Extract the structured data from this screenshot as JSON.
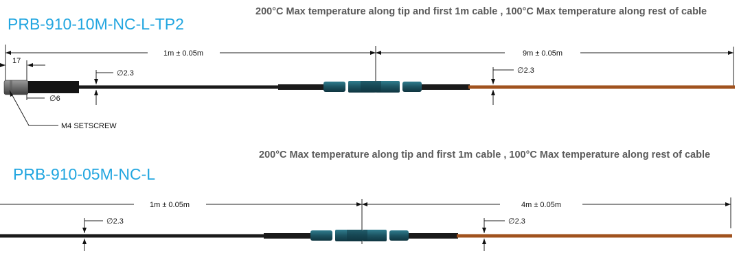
{
  "colors": {
    "title": "#22a6e0",
    "note": "#5a5a5a",
    "cable_black": "#141414",
    "cable_brown": "#a0521e",
    "connector": "#1f5f6e"
  },
  "drawings": [
    {
      "part_number": "PRB-910-10M-NC-L-TP2",
      "note": "200°C Max temperature along tip and first 1m cable , 100°C Max temperature along rest of cable",
      "dim_first": "1m ± 0.05m",
      "dim_rest": "9m ± 0.05m",
      "dim_tip_length": "17",
      "dia_cable_black": "∅2.3",
      "dia_cable_brown": "∅2.3",
      "dia_tip": "∅6",
      "setscrew_label": "M4 SETSCREW"
    },
    {
      "part_number": "PRB-910-05M-NC-L",
      "note": "200°C Max temperature along tip and first 1m cable , 100°C Max temperature along rest of cable",
      "dim_first": "1m ± 0.05m",
      "dim_rest": "4m ± 0.05m",
      "dia_cable_black": "∅2.3",
      "dia_cable_brown": "∅2.3"
    }
  ]
}
